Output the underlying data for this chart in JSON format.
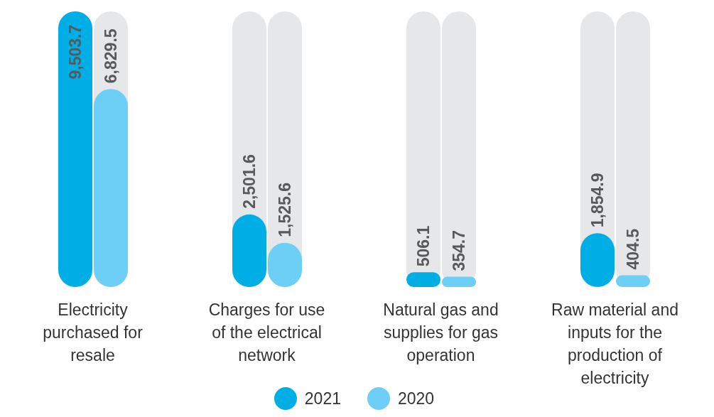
{
  "chart_data": {
    "type": "bar",
    "categories": [
      "Electricity purchased for resale",
      "Charges for use of the electrical network",
      "Natural gas and supplies for gas operation",
      "Raw material and inputs for the production of electricity"
    ],
    "series": [
      {
        "name": "2021",
        "color": "#00aee6",
        "values": [
          9503.7,
          2501.6,
          506.1,
          1854.9
        ],
        "value_labels": [
          "9,503.7",
          "2,501.6",
          "506.1",
          "1,854.9"
        ]
      },
      {
        "name": "2020",
        "color": "#6dcff6",
        "values": [
          6829.5,
          1525.6,
          354.7,
          404.5
        ],
        "value_labels": [
          "6,829.5",
          "1,525.6",
          "354.7",
          "404.5"
        ]
      }
    ],
    "legend": "bottom",
    "grid": false
  }
}
